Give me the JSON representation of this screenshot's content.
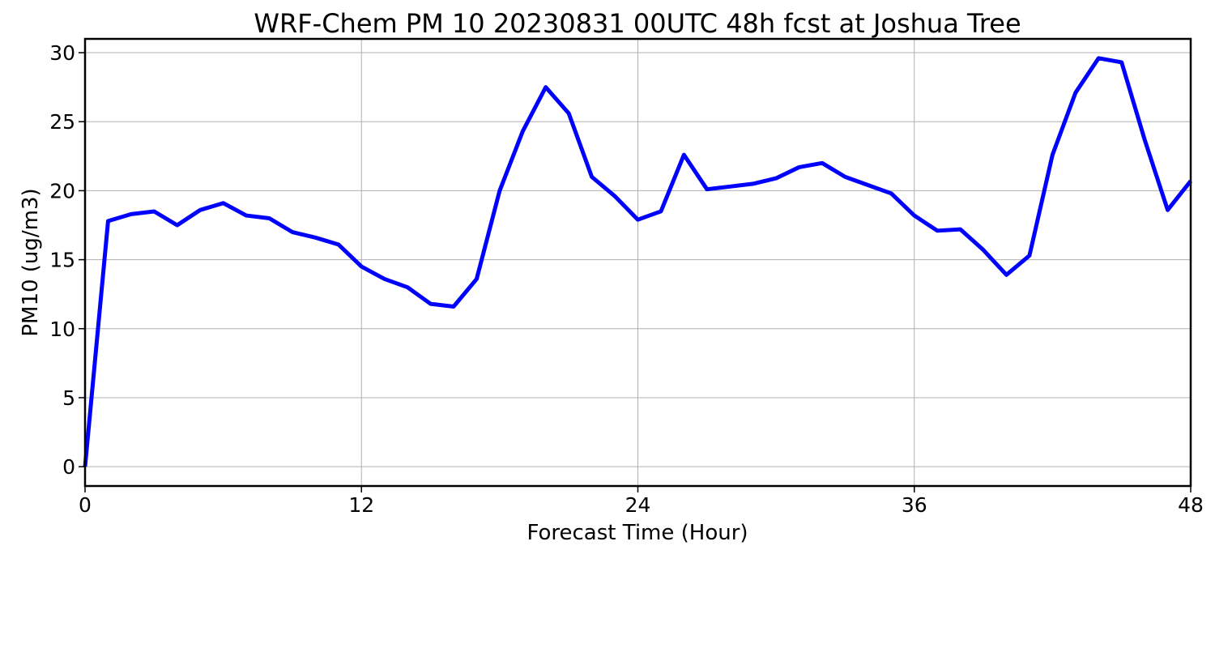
{
  "colors": {
    "series": "#0000ff",
    "grid": "#b0b0b0",
    "axes": "#000000",
    "background": "#ffffff"
  },
  "chart_data": {
    "type": "line",
    "title": "WRF-Chem PM 10  20230831 00UTC 48h fcst at Joshua Tree",
    "xlabel": "Forecast Time (Hour)",
    "ylabel": "PM10  (ug/m3)",
    "xlim": [
      0,
      48
    ],
    "ylim": [
      -1.4,
      31
    ],
    "xticks": [
      0,
      12,
      24,
      36,
      48
    ],
    "yticks": [
      0,
      5,
      10,
      15,
      20,
      25,
      30
    ],
    "grid": true,
    "legend": "none",
    "series": [
      {
        "x": [
          0,
          1,
          2,
          3,
          4,
          5,
          6,
          7,
          8,
          9,
          10,
          11,
          12,
          13,
          14,
          15,
          16,
          17,
          18,
          19,
          20,
          21,
          22,
          23,
          24,
          25,
          26,
          27,
          28,
          29,
          30,
          31,
          32,
          33,
          34,
          35,
          36,
          37,
          38,
          39,
          40,
          41,
          42,
          43,
          44,
          45,
          46,
          47,
          48
        ],
        "values": [
          0.0,
          17.8,
          18.3,
          18.5,
          17.5,
          18.6,
          19.1,
          18.2,
          18.0,
          17.0,
          16.6,
          16.1,
          14.5,
          13.6,
          13.0,
          11.8,
          11.6,
          13.6,
          20.0,
          24.3,
          27.5,
          25.6,
          21.0,
          19.6,
          17.9,
          18.5,
          22.6,
          20.1,
          20.3,
          20.5,
          20.9,
          21.7,
          22.0,
          21.0,
          20.4,
          19.8,
          18.2,
          17.1,
          17.2,
          15.7,
          13.9,
          15.3,
          22.6,
          27.1,
          29.6,
          29.3,
          23.7,
          18.6,
          20.7
        ]
      }
    ]
  }
}
